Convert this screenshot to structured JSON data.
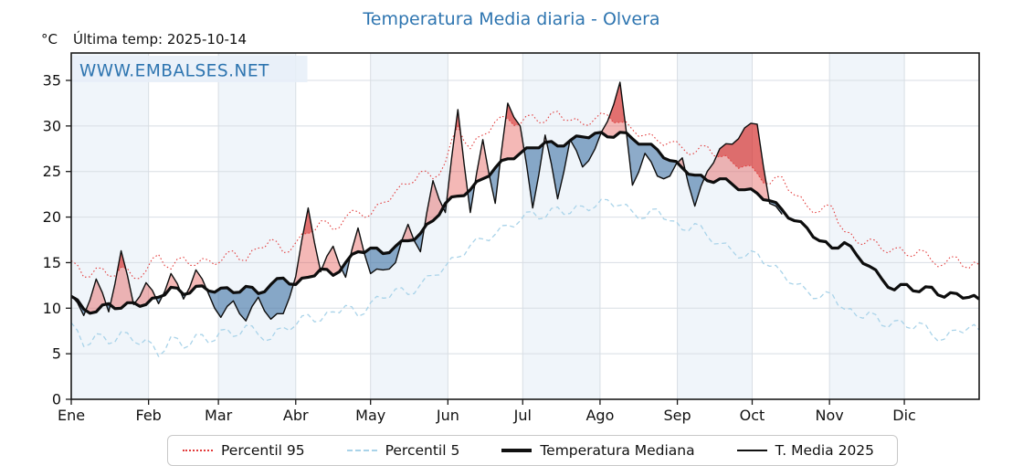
{
  "title": "Temperatura Media diaria - Olvera",
  "watermark": "WWW.EMBALSES.NET",
  "header": {
    "unit": "°C",
    "last_temp": "Última temp: 2025-10-14"
  },
  "legend": [
    {
      "label": "Percentil 95",
      "style": "dotted",
      "color": "#e23b3b"
    },
    {
      "label": "Percentil 5",
      "style": "dashed",
      "color": "#a9d3e9"
    },
    {
      "label": "Temperatura Mediana",
      "style": "thick",
      "color": "#111111"
    },
    {
      "label": "T. Media 2025",
      "style": "thin",
      "color": "#111111"
    }
  ],
  "colors": {
    "title_blue": "#2e75b0",
    "watermark_blue": "#2e75b0",
    "watermark_bg": "#e7eff8",
    "month_band": "#f0f5fa",
    "grid": "#d8dee4",
    "spine": "#1a1a1a",
    "p95_line": "#e23b3b",
    "p5_line": "#a9d3e9",
    "median_line": "#0d0d0d",
    "t2025_line": "#0d0d0d",
    "fill_above": "rgba(228,78,72,0.40)",
    "fill_below": "rgba(48,102,156,0.55)",
    "fill_above_p95": "rgba(205,25,25,0.45)",
    "fill_below_p5": "rgba(20,70,120,0.45)"
  },
  "chart_data": {
    "type": "line",
    "title": "Temperatura Media diaria - Olvera",
    "ylabel": "°C",
    "ylim": [
      0,
      38
    ],
    "yticks": [
      0,
      5,
      10,
      15,
      20,
      25,
      30,
      35
    ],
    "xtick_labels": [
      "Ene",
      "Feb",
      "Mar",
      "Abr",
      "May",
      "Jun",
      "Jul",
      "Ago",
      "Sep",
      "Oct",
      "Nov",
      "Dic"
    ],
    "month_start_days": [
      1,
      32,
      60,
      91,
      121,
      152,
      182,
      213,
      244,
      274,
      305,
      335,
      366
    ],
    "shaded_months": [
      0,
      2,
      4,
      6,
      8,
      10
    ],
    "grid": true,
    "legend_position": "bottom",
    "last_observation": "2025-10-14",
    "last_observation_day": 287,
    "sample_days": [
      1,
      6,
      11,
      16,
      21,
      26,
      31,
      36,
      41,
      46,
      51,
      56,
      61,
      66,
      71,
      76,
      81,
      86,
      91,
      96,
      101,
      106,
      111,
      116,
      121,
      126,
      131,
      136,
      141,
      146,
      151,
      156,
      161,
      166,
      171,
      176,
      181,
      186,
      191,
      196,
      201,
      206,
      211,
      216,
      221,
      226,
      231,
      236,
      241,
      246,
      251,
      256,
      261,
      266,
      271,
      276,
      281,
      286,
      291,
      296,
      301,
      306,
      311,
      316,
      321,
      326,
      331,
      336,
      341,
      346,
      351,
      356,
      361,
      365
    ],
    "series": [
      {
        "name": "Percentil 95",
        "values": [
          15.2,
          13.4,
          14.4,
          13.5,
          14.5,
          13.3,
          14.1,
          15.9,
          14.3,
          15.6,
          14.7,
          15.3,
          15.1,
          16.3,
          15.2,
          16.6,
          17.6,
          16.1,
          17.2,
          18.2,
          19.6,
          18.6,
          20.0,
          20.6,
          20.2,
          21.6,
          22.8,
          23.6,
          25.0,
          24.2,
          26.0,
          30.0,
          27.5,
          29.0,
          30.5,
          30.8,
          30.2,
          31.2,
          30.4,
          31.6,
          30.6,
          30.2,
          30.8,
          31.2,
          30.4,
          29.6,
          29.0,
          28.4,
          28.2,
          27.6,
          27.0,
          27.8,
          26.6,
          26.0,
          25.6,
          24.8,
          23.6,
          24.4,
          22.4,
          21.2,
          20.6,
          21.2,
          18.4,
          17.2,
          17.6,
          16.4,
          16.6,
          15.8,
          16.4,
          15.2,
          14.8,
          15.6,
          14.4,
          14.8
        ]
      },
      {
        "name": "Percentil 5",
        "values": [
          8.4,
          5.8,
          7.2,
          6.1,
          7.4,
          6.3,
          6.6,
          4.7,
          6.9,
          5.6,
          7.1,
          6.2,
          7.6,
          6.9,
          8.1,
          7.1,
          6.6,
          7.9,
          8.1,
          9.3,
          8.6,
          9.6,
          10.3,
          9.1,
          10.6,
          11.1,
          12.1,
          11.5,
          12.6,
          13.6,
          14.6,
          15.6,
          16.9,
          17.6,
          18.1,
          19.1,
          19.6,
          20.6,
          19.9,
          21.1,
          20.4,
          21.2,
          21.1,
          21.9,
          21.3,
          20.6,
          19.9,
          20.9,
          19.6,
          18.6,
          19.3,
          17.9,
          17.1,
          16.3,
          15.6,
          16.1,
          14.6,
          13.9,
          12.6,
          11.9,
          11.1,
          11.6,
          9.9,
          9.1,
          9.6,
          8.1,
          8.6,
          7.9,
          8.4,
          7.1,
          6.6,
          7.6,
          7.9,
          7.6
        ]
      },
      {
        "name": "Temperatura Mediana",
        "values": [
          11.3,
          9.9,
          9.6,
          10.5,
          10.0,
          10.6,
          10.4,
          11.2,
          12.3,
          11.5,
          12.4,
          11.9,
          12.2,
          11.7,
          12.4,
          11.6,
          12.6,
          13.3,
          12.6,
          13.4,
          14.3,
          13.6,
          15.0,
          16.2,
          16.6,
          16.0,
          16.8,
          17.4,
          18.2,
          19.6,
          21.5,
          22.3,
          23.0,
          24.2,
          25.4,
          26.4,
          27.0,
          27.6,
          28.2,
          27.8,
          28.4,
          28.8,
          29.2,
          28.8,
          29.3,
          28.6,
          28.0,
          27.4,
          26.2,
          25.4,
          24.6,
          24.0,
          24.2,
          23.6,
          23.0,
          22.6,
          21.8,
          20.8,
          19.6,
          18.8,
          17.4,
          16.6,
          17.2,
          15.8,
          14.6,
          13.2,
          12.0,
          12.6,
          11.8,
          12.3,
          11.2,
          11.6,
          11.2,
          11.0
        ]
      },
      {
        "name": "T. Media 2025",
        "values": [
          11.4,
          9.2,
          13.2,
          9.6,
          16.3,
          10.4,
          12.8,
          10.5,
          13.8,
          11.0,
          14.2,
          11.6,
          9.0,
          10.8,
          8.6,
          11.2,
          8.8,
          9.4,
          13.5,
          21.0,
          14.0,
          16.8,
          13.4,
          18.8,
          13.8,
          14.2,
          15.0,
          19.2,
          16.2,
          24.0,
          20.5,
          31.8,
          20.5,
          28.5,
          21.5,
          32.5,
          30.0,
          21.0,
          29.0,
          22.0,
          28.5,
          25.5,
          27.5,
          30.5,
          34.8,
          23.5,
          27.0,
          24.5,
          24.5,
          26.5,
          21.2,
          25.0,
          27.5,
          28.0,
          29.8,
          30.2,
          21.5,
          20.3
        ]
      }
    ]
  }
}
